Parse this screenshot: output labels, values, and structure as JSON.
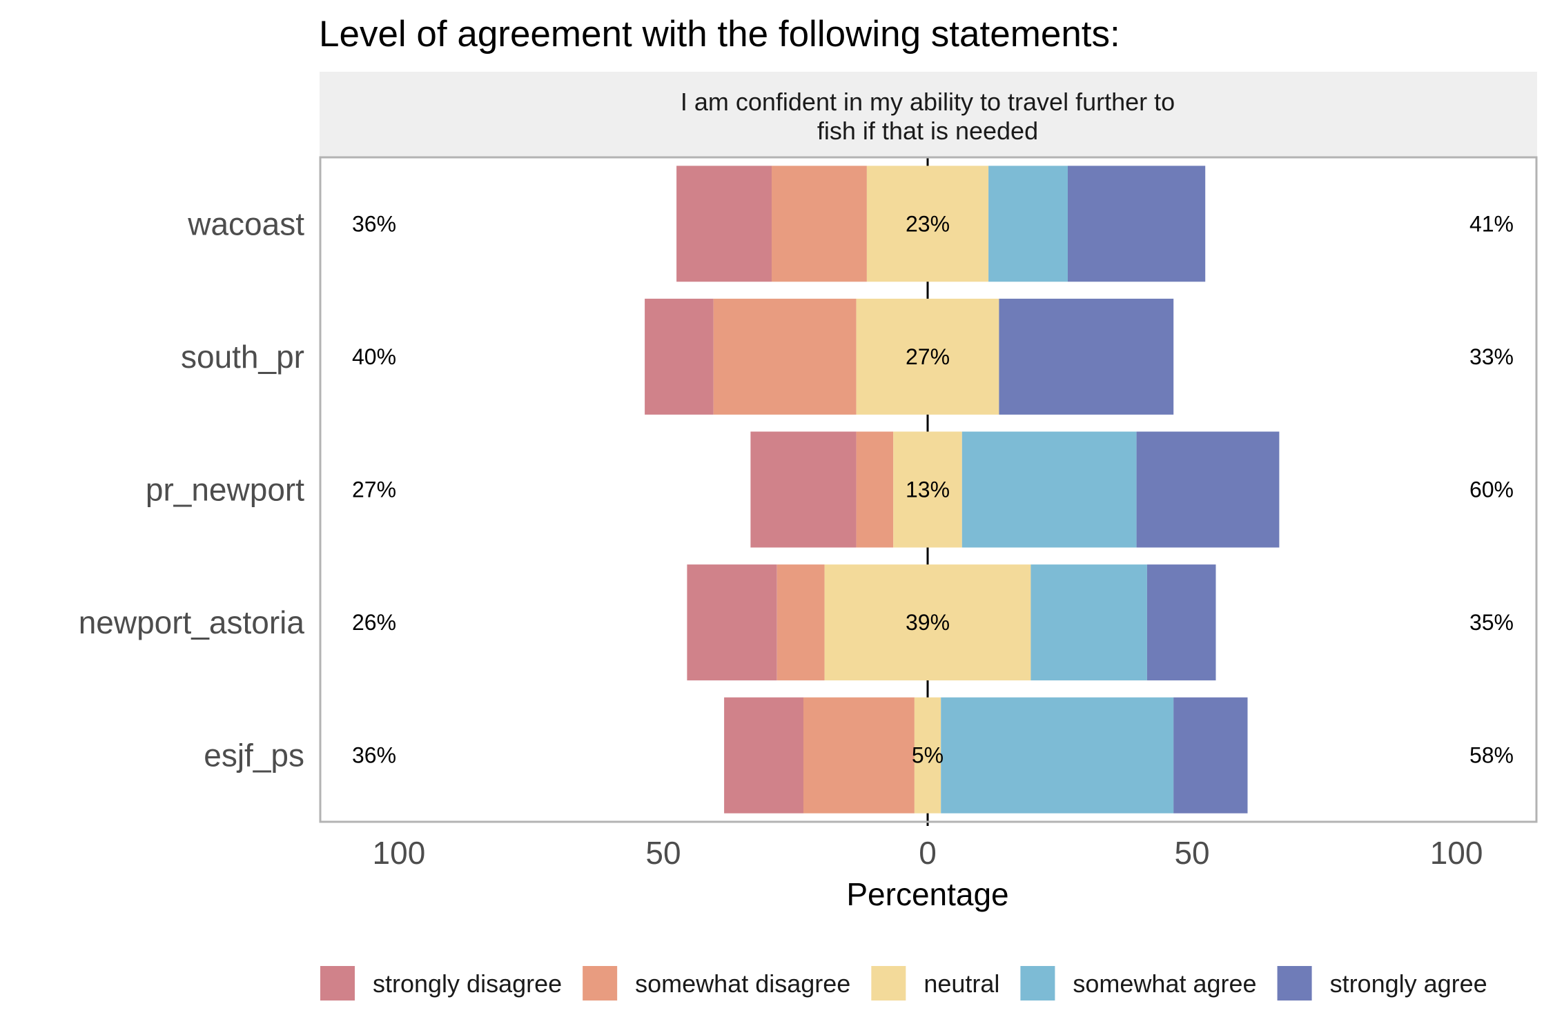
{
  "chart_data": {
    "type": "bar",
    "orientation": "horizontal",
    "diverging": true,
    "title": "Level of agreement with the following statements:",
    "facet_title": "I am confident in my ability to travel further to fish if that is needed",
    "facet_title_lines": [
      "I am confident in my ability to travel further to",
      "fish if that is needed"
    ],
    "xlabel": "Percentage",
    "ylabel": "",
    "xlim": [
      -115,
      115
    ],
    "x_ticks": [
      -100,
      -50,
      0,
      50,
      100
    ],
    "x_tick_labels": [
      "100",
      "50",
      "0",
      "50",
      "100"
    ],
    "grid": false,
    "legend_position": "bottom",
    "categories": [
      "wacoast",
      "south_pr",
      "pr_newport",
      "newport_astoria",
      "esjf_ps"
    ],
    "series": [
      {
        "name": "strongly disagree",
        "color": "#D0828A",
        "values": [
          18,
          13,
          20,
          17,
          15
        ]
      },
      {
        "name": "somewhat disagree",
        "color": "#E89C80",
        "values": [
          18,
          27,
          7,
          9,
          21
        ]
      },
      {
        "name": "neutral",
        "color": "#F3DA9A",
        "values": [
          23,
          27,
          13,
          39,
          5
        ]
      },
      {
        "name": "somewhat agree",
        "color": "#7DBBD5",
        "values": [
          15,
          0,
          33,
          22,
          44
        ]
      },
      {
        "name": "strongly agree",
        "color": "#6F7CB8",
        "values": [
          26,
          33,
          27,
          13,
          14
        ]
      }
    ],
    "left_labels": [
      "36%",
      "40%",
      "27%",
      "26%",
      "36%"
    ],
    "center_labels": [
      "23%",
      "27%",
      "13%",
      "39%",
      "5%"
    ],
    "right_labels": [
      "41%",
      "33%",
      "60%",
      "35%",
      "58%"
    ]
  }
}
